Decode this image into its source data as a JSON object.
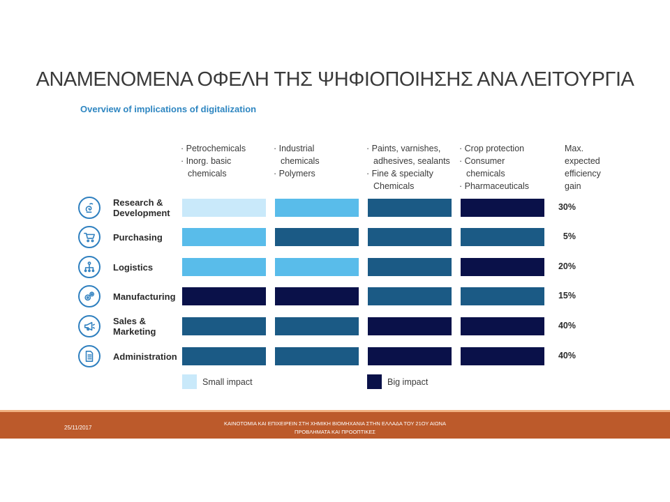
{
  "slide": {
    "title": "ΑΝΑΜΕΝΟΜΕΝΑ ΟΦΕΛΗ ΤΗΣ ΨΗΦΙΟΠΟΙΗΣΗΣ ΑΝΑ ΛΕΙΤΟΥΡΓΙΑ",
    "subtitle": "Overview of implications of digitalization"
  },
  "columns": [
    {
      "lines": [
        "· Petrochemicals",
        "· Inorg. basic",
        "chemicals"
      ]
    },
    {
      "lines": [
        "· Industrial",
        "chemicals",
        "· Polymers"
      ]
    },
    {
      "lines": [
        "· Paints, varnishes,",
        "adhesives, sealants",
        "· Fine & specialty",
        "Chemicals"
      ]
    },
    {
      "lines": [
        "· Crop protection",
        "· Consumer",
        "chemicals",
        "· Pharmaceuticals"
      ]
    }
  ],
  "gain_header": [
    "Max.",
    "expected",
    "efficiency",
    "gain"
  ],
  "impact_colors": {
    "1": "#c9e9fa",
    "2": "#59bcea",
    "3": "#1b5a85",
    "4": "#0a1149"
  },
  "rows": [
    {
      "label_lines": [
        "Research &",
        "Development"
      ],
      "icon": "research-icon",
      "impact": [
        1,
        2,
        3,
        4
      ],
      "gain": "30%"
    },
    {
      "label_lines": [
        "Purchasing"
      ],
      "icon": "cart-icon",
      "impact": [
        2,
        3,
        3,
        3
      ],
      "gain": "5%"
    },
    {
      "label_lines": [
        "Logistics"
      ],
      "icon": "network-icon",
      "impact": [
        2,
        2,
        3,
        4
      ],
      "gain": "20%"
    },
    {
      "label_lines": [
        "Manufacturing"
      ],
      "icon": "gears-icon",
      "impact": [
        4,
        4,
        3,
        3
      ],
      "gain": "15%"
    },
    {
      "label_lines": [
        "Sales &",
        "Marketing"
      ],
      "icon": "megaphone-icon",
      "impact": [
        3,
        3,
        4,
        4
      ],
      "gain": "40%"
    },
    {
      "label_lines": [
        "Administration"
      ],
      "icon": "document-icon",
      "impact": [
        3,
        3,
        4,
        4
      ],
      "gain": "40%"
    }
  ],
  "legend": {
    "small": {
      "label": "Small impact",
      "color": "#c9e9fa"
    },
    "big": {
      "label": "Big impact",
      "color": "#0a1149"
    }
  },
  "footer": {
    "date": "25/11/2017",
    "caption_line1": "ΚΑΙΝΟΤΟΜΙΑ ΚΑΙ ΕΠΙΧΕΙΡΕΙΝ ΣΤΗ ΧΗΜΙΚΗ ΒΙΟΜΗΧΑΝΙΑ ΣΤΗΝ ΕΛΛΑΔΑ ΤΟΥ 21ΟΥ ΑΙΩΝΑ",
    "caption_line2": "ΠΡΟΒΛΗΜΑΤΑ ΚΑΙ ΠΡΟΟΠΤΙΚΕΣ"
  }
}
